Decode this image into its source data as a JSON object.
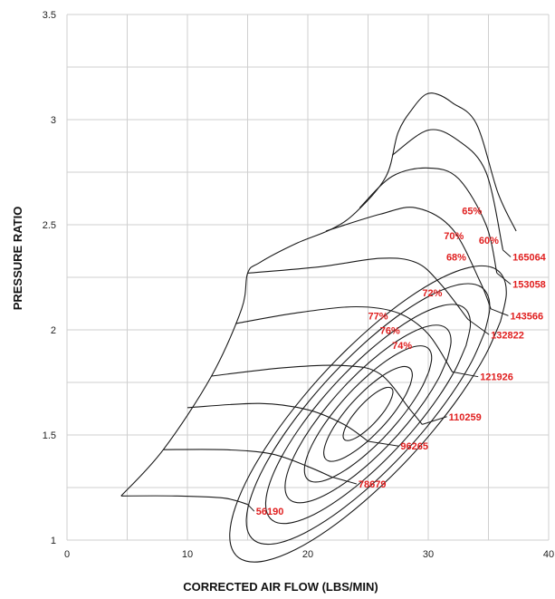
{
  "chart_data": {
    "type": "line",
    "title": "",
    "xlabel": "CORRECTED AIR FLOW (LBS/MIN)",
    "ylabel": "PRESSURE RATIO",
    "xlim": [
      0,
      40
    ],
    "ylim": [
      1,
      3.5
    ],
    "x_ticks": [
      {
        "v": 0,
        "label": "0"
      },
      {
        "v": 10,
        "label": "10"
      },
      {
        "v": 20,
        "label": "20"
      },
      {
        "v": 30,
        "label": "30"
      },
      {
        "v": 40,
        "label": "40"
      }
    ],
    "y_ticks": [
      {
        "v": 1,
        "label": "1"
      },
      {
        "v": 1.5,
        "label": "1.5"
      },
      {
        "v": 2,
        "label": "2"
      },
      {
        "v": 2.5,
        "label": "2.5"
      },
      {
        "v": 3,
        "label": "3"
      },
      {
        "v": 3.5,
        "label": "3.5"
      }
    ],
    "grid": true,
    "surge_line": [
      [
        4.5,
        1.21
      ],
      [
        8,
        1.43
      ],
      [
        12,
        1.78
      ],
      [
        14.5,
        2.1
      ],
      [
        15,
        2.27
      ],
      [
        16,
        2.32
      ],
      [
        19,
        2.41
      ],
      [
        22,
        2.48
      ],
      [
        24,
        2.56
      ],
      [
        26.5,
        2.73
      ],
      [
        27.5,
        2.94
      ],
      [
        28.8,
        3.06
      ],
      [
        29.8,
        3.12
      ],
      [
        30.8,
        3.12
      ],
      [
        32,
        3.08
      ],
      [
        34,
        2.98
      ],
      [
        35.8,
        2.65
      ],
      [
        37.3,
        2.47
      ]
    ],
    "speed_lines": [
      {
        "label": "56190",
        "points": [
          [
            4.5,
            1.21
          ],
          [
            9,
            1.21
          ],
          [
            13,
            1.2
          ],
          [
            15,
            1.17
          ]
        ],
        "label_at": [
          15.7,
          1.12
        ]
      },
      {
        "label": "78679",
        "points": [
          [
            8,
            1.43
          ],
          [
            13,
            1.43
          ],
          [
            17,
            1.41
          ],
          [
            20,
            1.35
          ],
          [
            22,
            1.3
          ]
        ],
        "label_at": [
          24.2,
          1.25
        ]
      },
      {
        "label": "96265",
        "points": [
          [
            10,
            1.63
          ],
          [
            16,
            1.65
          ],
          [
            20,
            1.62
          ],
          [
            23,
            1.55
          ],
          [
            25,
            1.47
          ]
        ],
        "label_at": [
          27.7,
          1.43
        ]
      },
      {
        "label": "110259",
        "points": [
          [
            12,
            1.78
          ],
          [
            18,
            1.82
          ],
          [
            23,
            1.83
          ],
          [
            26,
            1.79
          ],
          [
            28.5,
            1.62
          ],
          [
            29.5,
            1.55
          ]
        ],
        "label_at": [
          31.7,
          1.57
        ]
      },
      {
        "label": "121926",
        "points": [
          [
            14,
            2.03
          ],
          [
            19,
            2.08
          ],
          [
            24,
            2.11
          ],
          [
            27.5,
            2.08
          ],
          [
            30,
            1.98
          ],
          [
            32,
            1.8
          ]
        ],
        "label_at": [
          34.3,
          1.76
        ]
      },
      {
        "label": "132822",
        "points": [
          [
            15,
            2.27
          ],
          [
            21,
            2.3
          ],
          [
            26,
            2.34
          ],
          [
            29,
            2.32
          ],
          [
            31,
            2.22
          ],
          [
            33.3,
            2.05
          ]
        ],
        "label_at": [
          35.2,
          1.96
        ]
      },
      {
        "label": "143566",
        "points": [
          [
            21.5,
            2.47
          ],
          [
            26,
            2.55
          ],
          [
            29,
            2.58
          ],
          [
            32,
            2.48
          ],
          [
            34.3,
            2.23
          ],
          [
            35.2,
            2.1
          ]
        ],
        "label_at": [
          36.8,
          2.05
        ]
      },
      {
        "label": "153058",
        "points": [
          [
            24.3,
            2.58
          ],
          [
            27,
            2.73
          ],
          [
            30,
            2.77
          ],
          [
            32.5,
            2.72
          ],
          [
            34.8,
            2.5
          ],
          [
            35.7,
            2.27
          ]
        ],
        "label_at": [
          37,
          2.2
        ]
      },
      {
        "label": "165064",
        "points": [
          [
            27,
            2.83
          ],
          [
            30,
            2.95
          ],
          [
            32.5,
            2.9
          ],
          [
            34.8,
            2.75
          ],
          [
            36.2,
            2.38
          ]
        ],
        "label_at": [
          37,
          2.33
        ]
      }
    ],
    "efficiency_islands": [
      {
        "label": "77%",
        "label_at": [
          25,
          2.05
        ]
      },
      {
        "label": "76%",
        "label_at": [
          26,
          1.98
        ]
      },
      {
        "label": "74%",
        "label_at": [
          27,
          1.91
        ]
      },
      {
        "label": "72%",
        "label_at": [
          29.5,
          2.16
        ]
      },
      {
        "label": "68%",
        "label_at": [
          31.5,
          2.33
        ]
      },
      {
        "label": "70%",
        "label_at": [
          31.3,
          2.43
        ]
      },
      {
        "label": "60%",
        "label_at": [
          34.2,
          2.41
        ]
      },
      {
        "label": "65%",
        "label_at": [
          32.8,
          2.55
        ]
      }
    ]
  }
}
